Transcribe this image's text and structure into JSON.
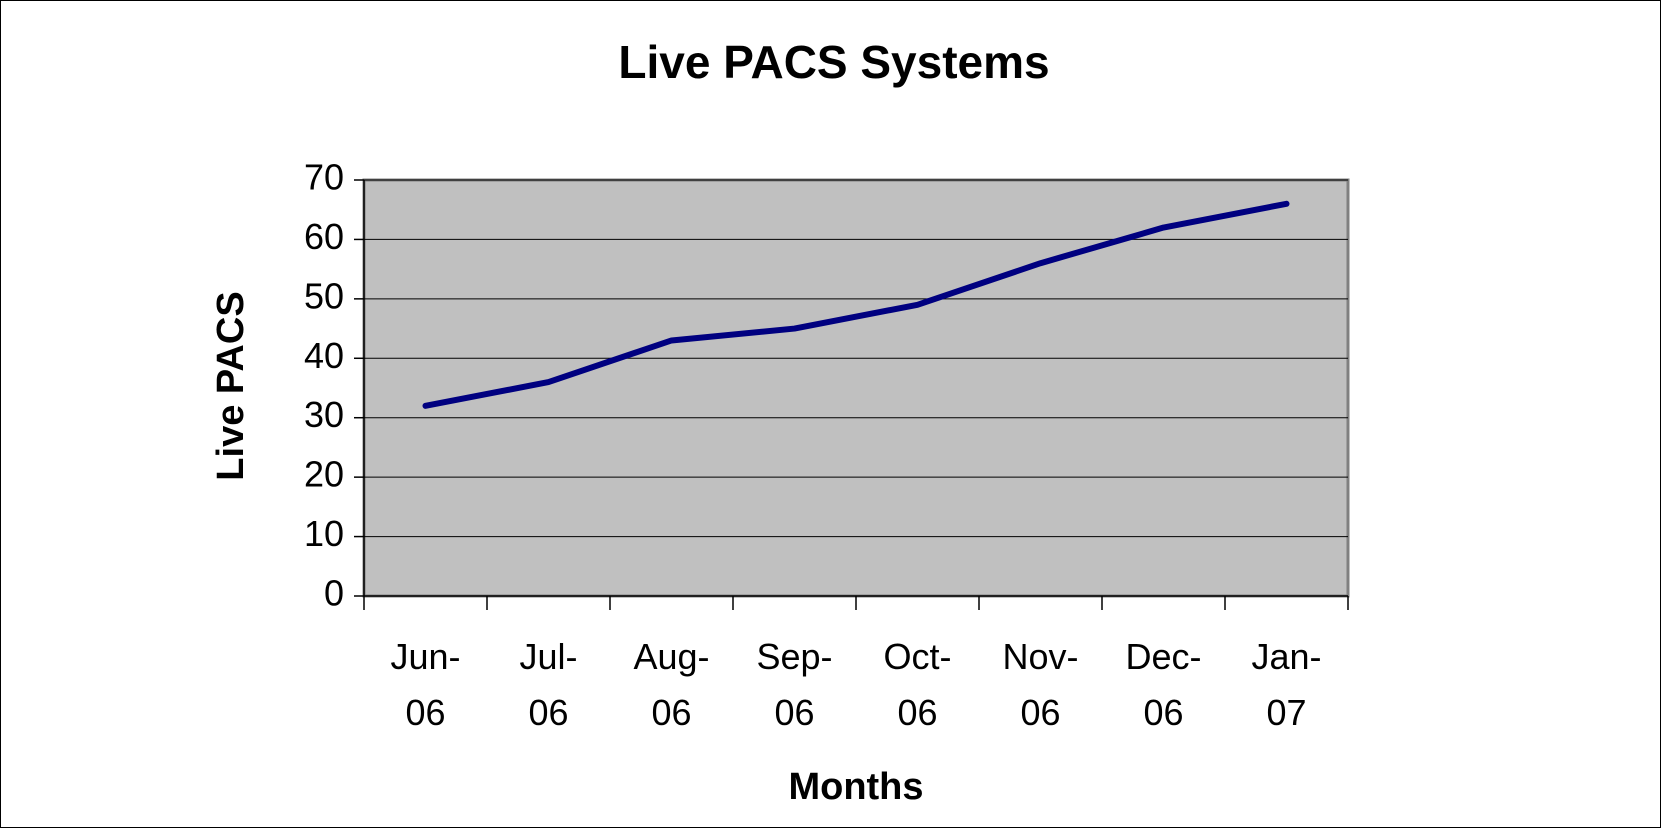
{
  "chart_data": {
    "type": "line",
    "title": "Live PACS Systems",
    "x_label": "Months",
    "y_label": "Live PACS",
    "categories": [
      "Jun-06",
      "Jul-06",
      "Aug-06",
      "Sep-06",
      "Oct-06",
      "Nov-06",
      "Dec-06",
      "Jan-07"
    ],
    "values": [
      32,
      36,
      43,
      45,
      49,
      56,
      62,
      66
    ],
    "color": "#000080",
    "ylim": [
      0,
      70
    ],
    "yticks": [
      0,
      10,
      20,
      30,
      40,
      50,
      60,
      70
    ],
    "grid": true
  }
}
